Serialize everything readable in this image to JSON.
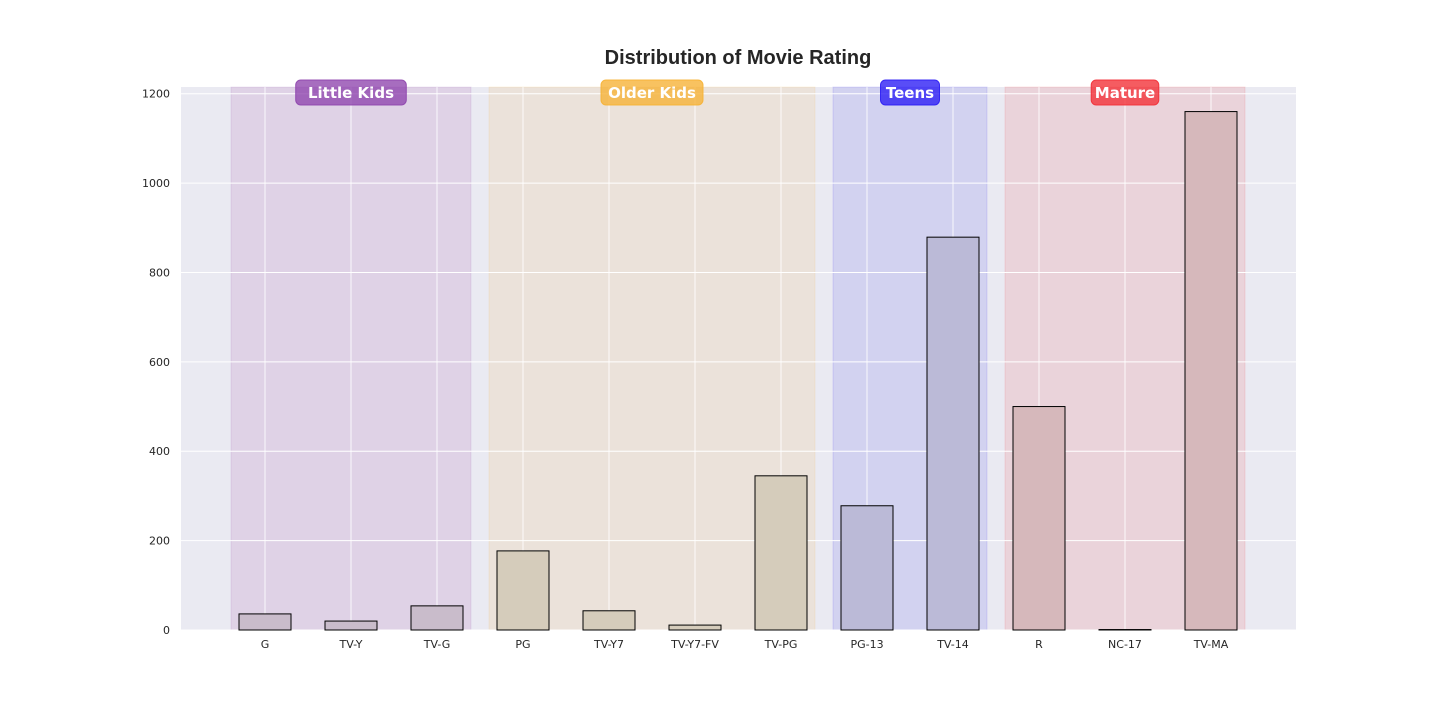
{
  "chart_data": {
    "type": "bar",
    "title": "Distribution of Movie Rating",
    "xlabel": "",
    "ylabel": "",
    "categories": [
      "G",
      "TV-Y",
      "TV-G",
      "PG",
      "TV-Y7",
      "TV-Y7-FV",
      "TV-PG",
      "PG-13",
      "TV-14",
      "R",
      "NC-17",
      "TV-MA"
    ],
    "values": [
      36,
      20,
      54,
      177,
      43,
      11,
      345,
      278,
      879,
      500,
      1,
      1160
    ],
    "ylim": [
      0,
      1215
    ],
    "yticks": [
      0,
      200,
      400,
      600,
      800,
      1000,
      1200
    ],
    "grid": true,
    "background": "#eaeaf2",
    "bar_edge_color": "#000000",
    "groups": [
      {
        "label": "Little Kids",
        "color": "#8e44ad",
        "band_color": "#dfd2e6",
        "bar_color": "#c9bccb",
        "categories": [
          "G",
          "TV-Y",
          "TV-G"
        ]
      },
      {
        "label": "Older Kids",
        "color": "#f6b133",
        "band_color": "#ebe2da",
        "bar_color": "#d5ccbb",
        "categories": [
          "PG",
          "TV-Y7",
          "TV-Y7-FV",
          "TV-PG"
        ]
      },
      {
        "label": "Teens",
        "color": "#2a1bf5",
        "band_color": "#d2d2f0",
        "bar_color": "#bbbad7",
        "categories": [
          "PG-13",
          "TV-14"
        ]
      },
      {
        "label": "Mature",
        "color": "#f22e35",
        "band_color": "#ead3da",
        "bar_color": "#d6b8bb",
        "categories": [
          "R",
          "NC-17",
          "TV-MA"
        ]
      }
    ]
  }
}
